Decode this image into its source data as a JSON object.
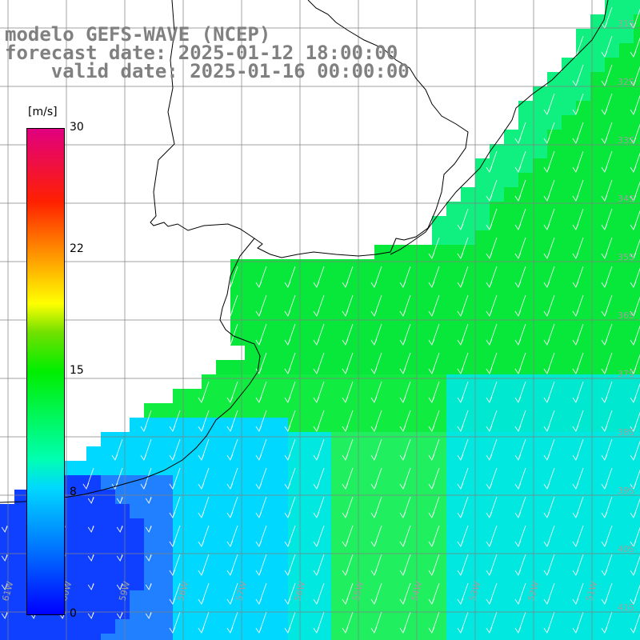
{
  "title": {
    "line1": "modelo GEFS-WAVE (NCEP)",
    "line2": "forecast date: 2025-01-12 18:00:00",
    "line3": "    valid date: 2025-01-16 00:00:00"
  },
  "colorbar": {
    "unit": "[m/s]",
    "ticks": [
      "30",
      "22",
      "15",
      "8",
      "0"
    ],
    "tick_values": [
      30,
      22,
      15,
      8,
      0
    ],
    "colors": [
      "#0000ff",
      "#0070ff",
      "#00d8ff",
      "#00ffb0",
      "#00ee00",
      "#70e000",
      "#ffff00",
      "#ffa000",
      "#ff2000",
      "#e00080"
    ]
  },
  "map": {
    "lon_labels": [
      "61W",
      "60W",
      "59W",
      "58W",
      "57W",
      "56W",
      "55W",
      "54W",
      "53W",
      "52W",
      "51W"
    ],
    "lat_labels": [
      "31S",
      "32S",
      "33S",
      "34S",
      "35S",
      "36S",
      "37S",
      "38S",
      "39S",
      "40S",
      "41S"
    ],
    "land_color": "#ffffff",
    "coast_color": "#000000",
    "grid_color": "#808080",
    "arrow_color": "#ffffff"
  }
}
